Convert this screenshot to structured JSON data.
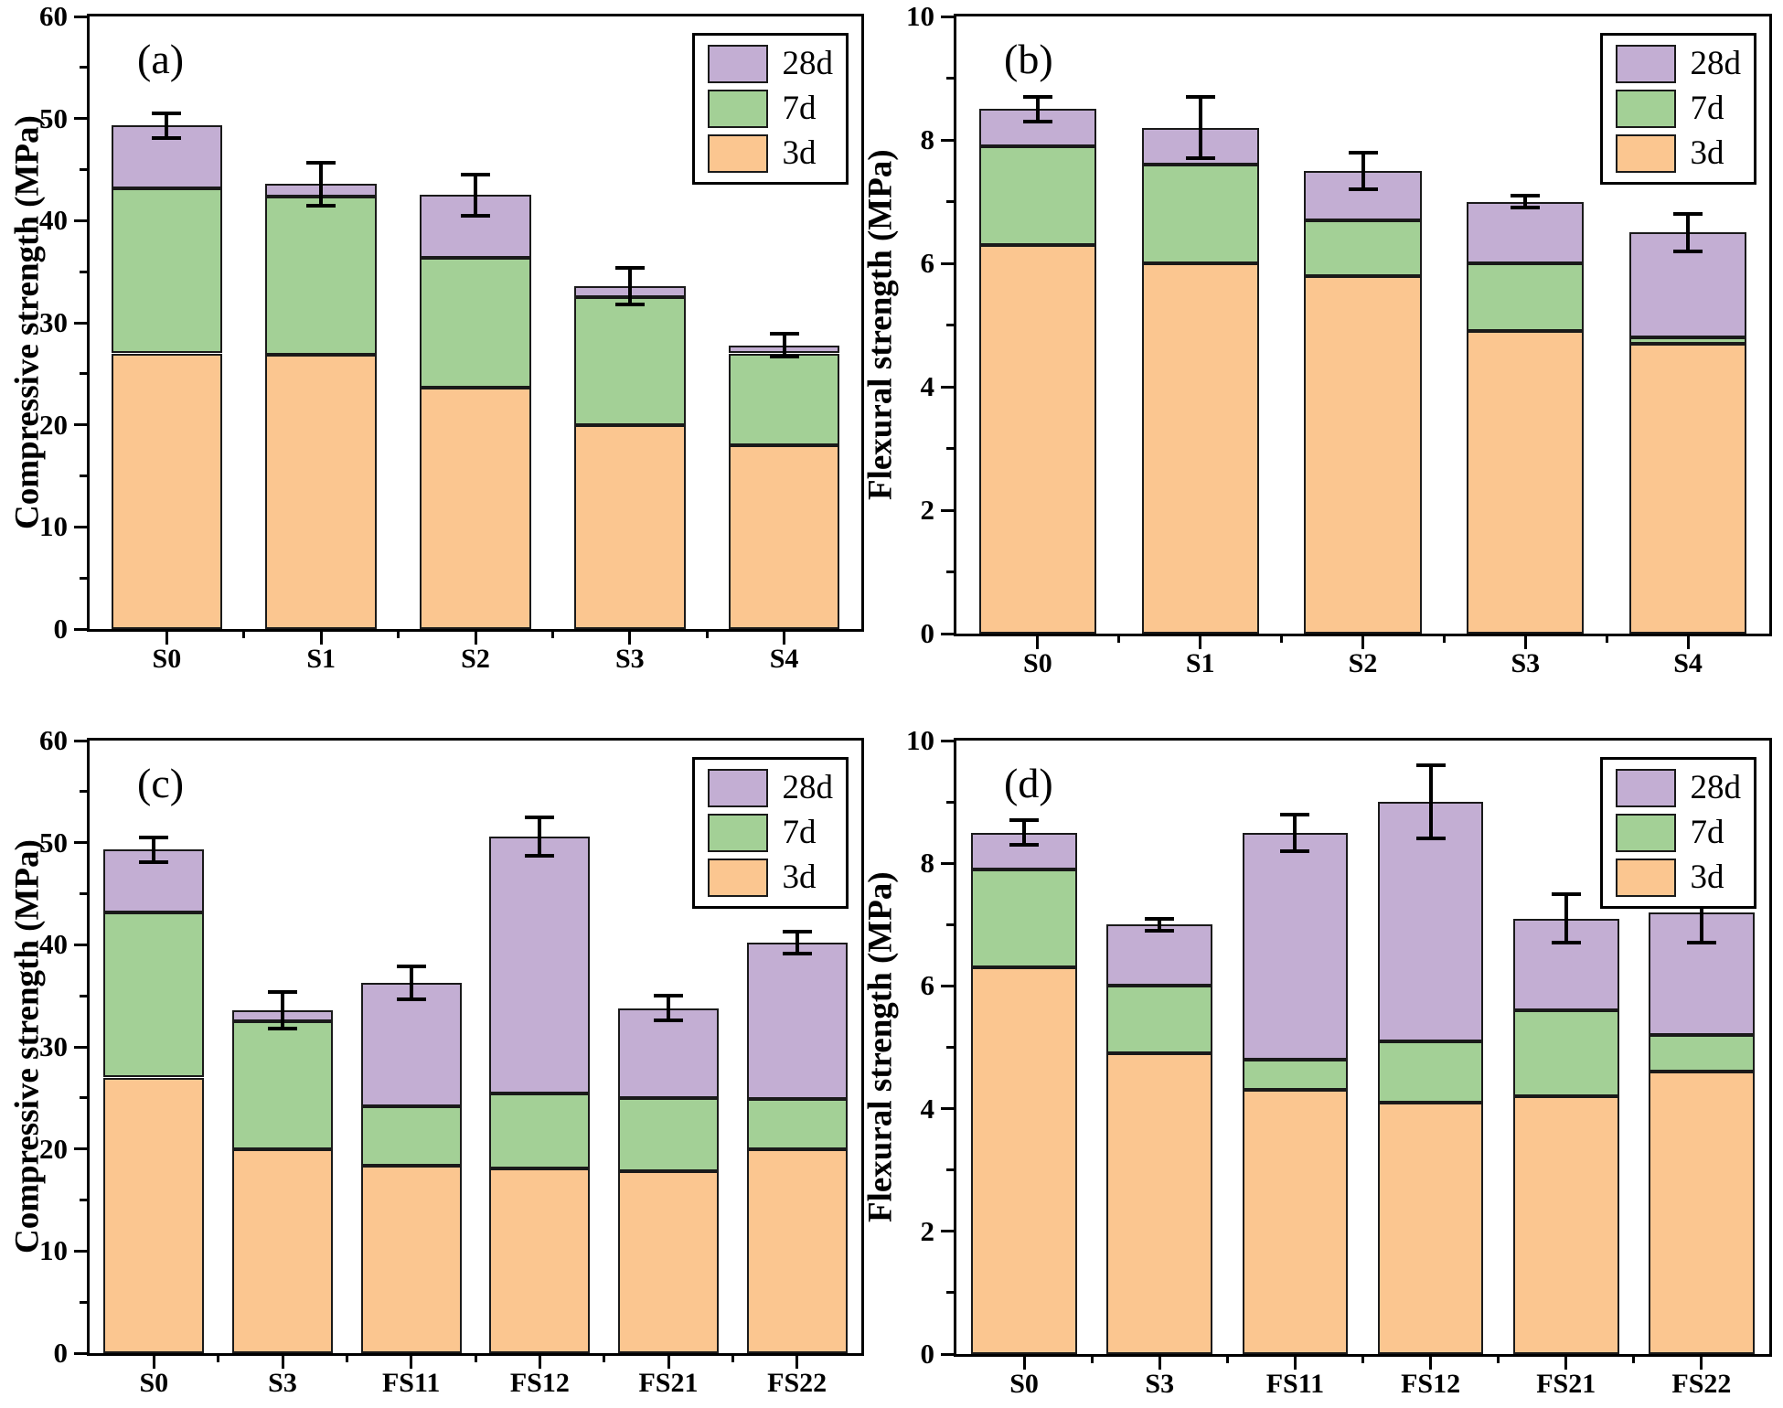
{
  "figure": {
    "description": "Four-panel stacked bar figure of mortar strengths at curing ages 3d, 7d and 28d",
    "panels": [
      "(a)",
      "(b)",
      "(c)",
      "(d)"
    ],
    "colors": {
      "d3": "#fbc690",
      "d7": "#a3d096",
      "d28": "#c3aed3",
      "axis": "#000000"
    }
  },
  "chart_data": [
    {
      "type": "bar",
      "panel": "(a)",
      "stacked": true,
      "cumulative": true,
      "ylabel": "Compressive strength (MPa)",
      "xlabel": "",
      "ylim": [
        0,
        60
      ],
      "yticks": [
        0,
        10,
        20,
        30,
        40,
        50,
        60
      ],
      "yminor": [
        5,
        15,
        25,
        35,
        45,
        55
      ],
      "categories": [
        "S0",
        "S1",
        "S2",
        "S3",
        "S4"
      ],
      "series": [
        {
          "name": "3d",
          "color": "#fbc690",
          "values": [
            27.0,
            26.9,
            23.6,
            20.0,
            18.0
          ]
        },
        {
          "name": "7d",
          "color": "#a3d096",
          "values": [
            43.2,
            42.4,
            36.4,
            32.5,
            27.0
          ]
        },
        {
          "name": "28d",
          "color": "#c3aed3",
          "values": [
            49.3,
            43.6,
            42.5,
            33.6,
            27.8
          ]
        }
      ],
      "error_bars": {
        "series": "28d",
        "plus_minus": [
          1.2,
          2.1,
          2.0,
          1.8,
          1.1
        ]
      },
      "legend": [
        "28d",
        "7d",
        "3d"
      ],
      "legend_position": "top-right",
      "grid": false
    },
    {
      "type": "bar",
      "panel": "(b)",
      "stacked": true,
      "cumulative": true,
      "ylabel": "Flexural strength (MPa)",
      "xlabel": "",
      "ylim": [
        0,
        10
      ],
      "yticks": [
        0,
        2,
        4,
        6,
        8,
        10
      ],
      "yminor": [
        1,
        3,
        5,
        7,
        9
      ],
      "categories": [
        "S0",
        "S1",
        "S2",
        "S3",
        "S4"
      ],
      "series": [
        {
          "name": "3d",
          "color": "#fbc690",
          "values": [
            6.3,
            6.0,
            5.8,
            4.9,
            4.7
          ]
        },
        {
          "name": "7d",
          "color": "#a3d096",
          "values": [
            7.9,
            7.6,
            6.7,
            6.0,
            4.8
          ]
        },
        {
          "name": "28d",
          "color": "#c3aed3",
          "values": [
            8.5,
            8.2,
            7.5,
            7.0,
            6.5
          ]
        }
      ],
      "error_bars": {
        "series": "28d",
        "plus_minus": [
          0.2,
          0.5,
          0.3,
          0.1,
          0.3
        ]
      },
      "legend": [
        "28d",
        "7d",
        "3d"
      ],
      "legend_position": "top-right",
      "grid": false
    },
    {
      "type": "bar",
      "panel": "(c)",
      "stacked": true,
      "cumulative": true,
      "ylabel": "Compressive strength (MPa)",
      "xlabel": "",
      "ylim": [
        0,
        60
      ],
      "yticks": [
        0,
        10,
        20,
        30,
        40,
        50,
        60
      ],
      "yminor": [
        5,
        15,
        25,
        35,
        45,
        55
      ],
      "categories": [
        "S0",
        "S3",
        "FS11",
        "FS12",
        "FS21",
        "FS22"
      ],
      "series": [
        {
          "name": "3d",
          "color": "#fbc690",
          "values": [
            27.0,
            20.0,
            18.4,
            18.1,
            17.8,
            20.0
          ]
        },
        {
          "name": "7d",
          "color": "#a3d096",
          "values": [
            43.2,
            32.5,
            24.2,
            25.4,
            25.0,
            24.9
          ]
        },
        {
          "name": "28d",
          "color": "#c3aed3",
          "values": [
            49.3,
            33.6,
            36.3,
            50.6,
            33.8,
            40.2
          ]
        }
      ],
      "error_bars": {
        "series": "28d",
        "plus_minus": [
          1.2,
          1.8,
          1.6,
          1.9,
          1.2,
          1.1
        ]
      },
      "legend": [
        "28d",
        "7d",
        "3d"
      ],
      "legend_position": "top-right",
      "grid": false
    },
    {
      "type": "bar",
      "panel": "(d)",
      "stacked": true,
      "cumulative": true,
      "ylabel": "Flexural strength (MPa)",
      "xlabel": "",
      "ylim": [
        0,
        10
      ],
      "yticks": [
        0,
        2,
        4,
        6,
        8,
        10
      ],
      "yminor": [
        1,
        3,
        5,
        7,
        9
      ],
      "categories": [
        "S0",
        "S3",
        "FS11",
        "FS12",
        "FS21",
        "FS22"
      ],
      "series": [
        {
          "name": "3d",
          "color": "#fbc690",
          "values": [
            6.3,
            4.9,
            4.3,
            4.1,
            4.2,
            4.6
          ]
        },
        {
          "name": "7d",
          "color": "#a3d096",
          "values": [
            7.9,
            6.0,
            4.8,
            5.1,
            5.6,
            5.2
          ]
        },
        {
          "name": "28d",
          "color": "#c3aed3",
          "values": [
            8.5,
            7.0,
            8.5,
            9.0,
            7.1,
            7.2
          ]
        }
      ],
      "error_bars": {
        "series": "28d",
        "plus_minus": [
          0.2,
          0.1,
          0.3,
          0.6,
          0.4,
          0.5
        ]
      },
      "legend": [
        "28d",
        "7d",
        "3d"
      ],
      "legend_position": "top-right",
      "grid": false
    }
  ]
}
